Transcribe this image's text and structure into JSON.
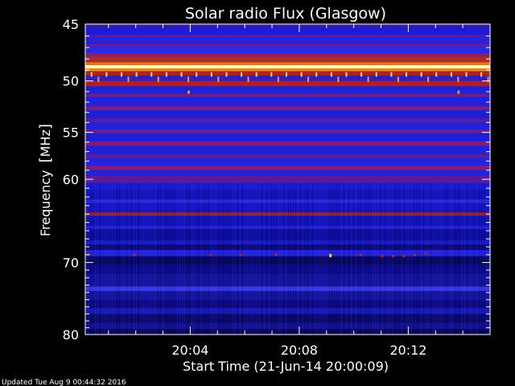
{
  "chart_data": {
    "type": "heatmap",
    "title": "Solar radio Flux (Glasgow)",
    "ylabel_text": "Frequency",
    "ylabel_unit": "MHz",
    "xlabel": "Start Time (21-Jun-14 20:00:09)",
    "footer": "Updated Tue Aug  9 00:44:32 2016",
    "y_scale": "log",
    "y_range_mhz": [
      45,
      80
    ],
    "y_inverted": true,
    "y_ticks": [
      45,
      50,
      55,
      60,
      70,
      80
    ],
    "x_range_min": [
      0.15,
      15.0
    ],
    "x_ticks": [
      {
        "value": 4,
        "label": "20:04"
      },
      {
        "value": 8,
        "label": "20:08"
      },
      {
        "value": 12,
        "label": "20:12"
      }
    ],
    "x_ticks_minor": [
      1,
      2,
      3,
      5,
      6,
      7,
      9,
      10,
      11,
      13,
      14
    ],
    "grid": false,
    "colors": {
      "background": "#000000",
      "axis": "#ffffff",
      "text": "#ffffff",
      "base": "#1a1adc"
    },
    "bands": [
      {
        "from": 45.0,
        "to": 45.3,
        "color": "#3a18b0"
      },
      {
        "from": 45.3,
        "to": 45.9,
        "color": "#1c1cd8"
      },
      {
        "from": 45.9,
        "to": 46.1,
        "color": "#5a1c9c"
      },
      {
        "from": 46.1,
        "to": 46.7,
        "color": "#2424e0"
      },
      {
        "from": 46.7,
        "to": 46.9,
        "color": "#6e1e8c"
      },
      {
        "from": 46.9,
        "to": 47.5,
        "color": "#2a2ae4"
      },
      {
        "from": 47.5,
        "to": 47.8,
        "color": "#8a2060"
      },
      {
        "from": 47.8,
        "to": 48.3,
        "color": "#b02a28"
      },
      {
        "from": 48.3,
        "to": 48.55,
        "color": "#e07818"
      },
      {
        "from": 48.55,
        "to": 48.85,
        "color": "#fff6c0"
      },
      {
        "from": 48.85,
        "to": 49.1,
        "color": "#e88a20"
      },
      {
        "from": 49.1,
        "to": 49.5,
        "color": "#b42020"
      },
      {
        "from": 49.5,
        "to": 50.0,
        "color": "#3a1cb8"
      },
      {
        "from": 50.0,
        "to": 50.5,
        "color": "#b41e22"
      },
      {
        "from": 50.5,
        "to": 51.2,
        "color": "#2020d8"
      },
      {
        "from": 51.2,
        "to": 51.5,
        "color": "#6a1e90"
      },
      {
        "from": 51.5,
        "to": 52.4,
        "color": "#2222dc"
      },
      {
        "from": 52.4,
        "to": 52.8,
        "color": "#7a1e80"
      },
      {
        "from": 52.8,
        "to": 53.6,
        "color": "#1e1ed8"
      },
      {
        "from": 53.6,
        "to": 54.0,
        "color": "#5c1c9c"
      },
      {
        "from": 54.0,
        "to": 54.7,
        "color": "#2222dc"
      },
      {
        "from": 54.7,
        "to": 55.1,
        "color": "#6a1e90"
      },
      {
        "from": 55.1,
        "to": 55.9,
        "color": "#1e1ed8"
      },
      {
        "from": 55.9,
        "to": 56.4,
        "color": "#7e1e7c"
      },
      {
        "from": 56.4,
        "to": 57.3,
        "color": "#2020d8"
      },
      {
        "from": 57.3,
        "to": 57.7,
        "color": "#621c98"
      },
      {
        "from": 57.7,
        "to": 58.5,
        "color": "#2424de"
      },
      {
        "from": 58.5,
        "to": 59.0,
        "color": "#7a1e80"
      },
      {
        "from": 59.0,
        "to": 59.6,
        "color": "#2222dc"
      },
      {
        "from": 59.6,
        "to": 60.4,
        "color": "#5a1c9c"
      },
      {
        "from": 60.4,
        "to": 61.2,
        "color": "#1a1ad0"
      },
      {
        "from": 61.2,
        "to": 62.3,
        "color": "#1414b8"
      },
      {
        "from": 62.3,
        "to": 62.7,
        "color": "#2a2ae0"
      },
      {
        "from": 62.7,
        "to": 63.8,
        "color": "#1616c0"
      },
      {
        "from": 63.8,
        "to": 64.2,
        "color": "#a02030"
      },
      {
        "from": 64.2,
        "to": 65.4,
        "color": "#1414b4"
      },
      {
        "from": 65.4,
        "to": 65.8,
        "color": "#2222d8"
      },
      {
        "from": 65.8,
        "to": 67.2,
        "color": "#0e0e9c"
      },
      {
        "from": 67.2,
        "to": 67.7,
        "color": "#1a1ac8"
      },
      {
        "from": 67.7,
        "to": 68.4,
        "color": "#0a0a78"
      },
      {
        "from": 68.4,
        "to": 69.2,
        "color": "#2424dc"
      },
      {
        "from": 69.2,
        "to": 70.3,
        "color": "#080860"
      },
      {
        "from": 70.3,
        "to": 71.5,
        "color": "#0c0c88"
      },
      {
        "from": 71.5,
        "to": 73.2,
        "color": "#14149c"
      },
      {
        "from": 73.2,
        "to": 73.8,
        "color": "#3a3ae8"
      },
      {
        "from": 73.8,
        "to": 75.0,
        "color": "#14149c"
      },
      {
        "from": 75.0,
        "to": 76.2,
        "color": "#0c0c80"
      },
      {
        "from": 76.2,
        "to": 77.0,
        "color": "#1a1ab8"
      },
      {
        "from": 77.0,
        "to": 78.3,
        "color": "#0a0a6c"
      },
      {
        "from": 78.3,
        "to": 79.2,
        "color": "#12128c"
      },
      {
        "from": 79.2,
        "to": 80.0,
        "color": "#080858"
      }
    ],
    "spike_rows": [
      {
        "freq_from": 49.2,
        "freq_to": 49.6,
        "period_min": 0.55,
        "offset_min": 0.2,
        "color": "#ffe070"
      },
      {
        "freq_from": 49.6,
        "freq_to": 50.1,
        "period_min": 1.1,
        "offset_min": 0.45,
        "color": "#ff9a30"
      }
    ],
    "events": [
      {
        "t": 3.9,
        "f_from": 50.9,
        "f_to": 51.2,
        "color": "#ff8a20"
      },
      {
        "t": 13.8,
        "f_from": 50.9,
        "f_to": 51.2,
        "color": "#ff8a20"
      },
      {
        "t": 0.25,
        "f_from": 68.8,
        "f_to": 69.1,
        "color": "#c02030"
      },
      {
        "t": 1.9,
        "f_from": 68.9,
        "f_to": 69.2,
        "color": "#c02030"
      },
      {
        "t": 4.7,
        "f_from": 68.9,
        "f_to": 69.2,
        "color": "#a02030"
      },
      {
        "t": 5.8,
        "f_from": 68.9,
        "f_to": 69.2,
        "color": "#a02030"
      },
      {
        "t": 7.1,
        "f_from": 68.8,
        "f_to": 69.1,
        "color": "#c02030"
      },
      {
        "t": 9.1,
        "f_from": 68.9,
        "f_to": 69.3,
        "color": "#ffd040"
      },
      {
        "t": 10.2,
        "f_from": 68.9,
        "f_to": 69.2,
        "color": "#c02030"
      },
      {
        "t": 11.0,
        "f_from": 69.0,
        "f_to": 69.3,
        "color": "#c02030"
      },
      {
        "t": 11.4,
        "f_from": 69.0,
        "f_to": 69.3,
        "color": "#c02030"
      },
      {
        "t": 11.8,
        "f_from": 69.0,
        "f_to": 69.3,
        "color": "#c02030"
      },
      {
        "t": 12.2,
        "f_from": 68.9,
        "f_to": 69.2,
        "color": "#c02030"
      },
      {
        "t": 12.6,
        "f_from": 68.7,
        "f_to": 69.0,
        "color": "#c02030"
      }
    ]
  }
}
